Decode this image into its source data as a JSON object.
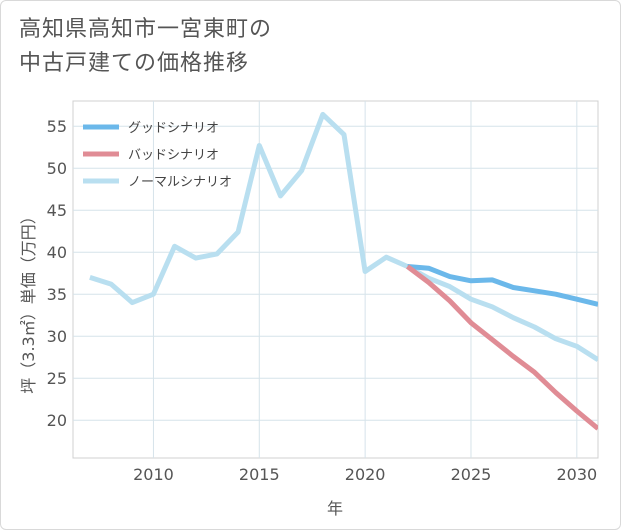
{
  "chart_data": {
    "type": "line",
    "title": [
      "高知県高知市一宮東町の",
      "中古戸建ての価格推移"
    ],
    "xlabel": "年",
    "ylabel": "坪（3.3㎡）単価（万円）",
    "xlim": [
      2006.2,
      2031
    ],
    "ylim": [
      15.5,
      58
    ],
    "xticks": [
      2010,
      2015,
      2020,
      2025,
      2030
    ],
    "yticks": [
      20,
      25,
      30,
      35,
      40,
      45,
      50,
      55
    ],
    "grid": true,
    "legend_position": "top-left",
    "series": [
      {
        "name": "グッドシナリオ",
        "color": "#6bb8ea",
        "x": [
          2022,
          2023,
          2024,
          2025,
          2026,
          2027,
          2028,
          2029,
          2030,
          2031
        ],
        "y": [
          38.3,
          38.1,
          37.1,
          36.6,
          36.7,
          35.8,
          35.4,
          35.0,
          34.4,
          33.8
        ]
      },
      {
        "name": "バッドシナリオ",
        "color": "#e08c95",
        "x": [
          2022,
          2023,
          2024,
          2025,
          2026,
          2027,
          2028,
          2029,
          2030,
          2031
        ],
        "y": [
          38.3,
          36.4,
          34.2,
          31.6,
          29.6,
          27.6,
          25.7,
          23.3,
          21.1,
          19.0
        ]
      },
      {
        "name": "ノーマルシナリオ",
        "color": "#b9dff0",
        "x": [
          2007,
          2008,
          2009,
          2010,
          2011,
          2012,
          2013,
          2014,
          2015,
          2016,
          2017,
          2018,
          2019,
          2020,
          2021,
          2022,
          2023,
          2024,
          2025,
          2026,
          2027,
          2028,
          2029,
          2030,
          2031
        ],
        "y": [
          37.0,
          36.2,
          34.0,
          35.0,
          40.7,
          39.3,
          39.8,
          42.4,
          52.7,
          46.7,
          49.7,
          56.4,
          54.0,
          37.7,
          39.4,
          38.3,
          36.9,
          35.9,
          34.4,
          33.5,
          32.2,
          31.1,
          29.7,
          28.8,
          27.2
        ]
      }
    ]
  }
}
